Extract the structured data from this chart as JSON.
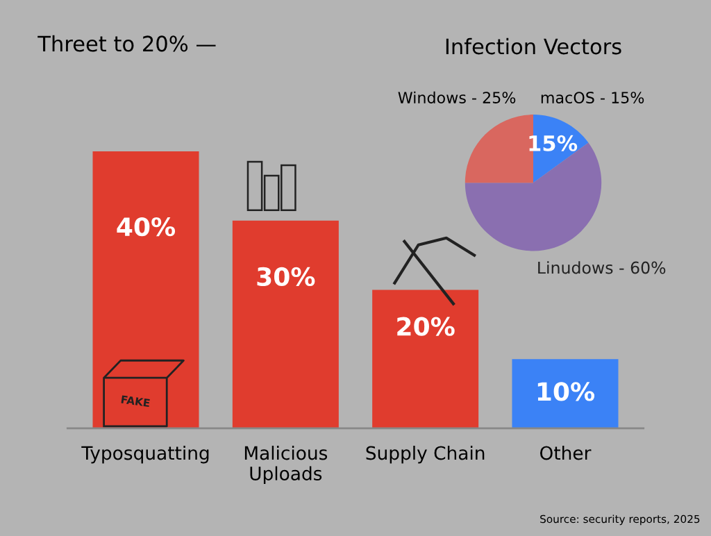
{
  "chart_data": [
    {
      "type": "bar",
      "title": "Threet to 20% —",
      "categories": [
        "Typosquatting",
        "Malicious\nUploads",
        "Supply Chain",
        "Other"
      ],
      "values": [
        40,
        30,
        20,
        10
      ],
      "colors": [
        "#e03c2e",
        "#e03c2e",
        "#e03c2e",
        "#3b82f6"
      ],
      "value_labels": [
        "40%",
        "30%",
        "20%",
        "10%"
      ],
      "annotations": [
        "FAKE",
        "Source: security reports, 2025"
      ]
    },
    {
      "type": "pie",
      "title": "Infection Vectors",
      "categories": [
        "macOS - 15%",
        "Linudows - 60%",
        "Windows - 25%"
      ],
      "values": [
        15,
        60,
        25
      ],
      "colors": [
        "#3b82f6",
        "#8a6fb0",
        "#d9675f"
      ],
      "value_labels": [
        "15%",
        null,
        null
      ]
    }
  ]
}
